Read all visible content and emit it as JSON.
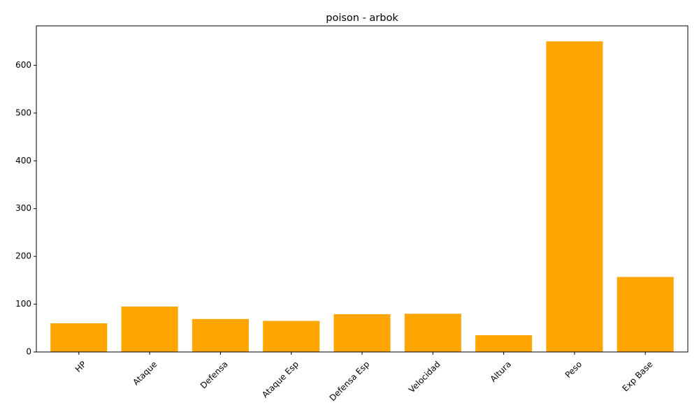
{
  "chart_data": {
    "type": "bar",
    "title": "poison - arbok",
    "xlabel": "",
    "ylabel": "",
    "categories": [
      "HP",
      "Ataque",
      "Defensa",
      "Ataque Esp",
      "Defensa Esp",
      "Velocidad",
      "Altura",
      "Peso",
      "Exp Base"
    ],
    "values": [
      60,
      95,
      69,
      65,
      79,
      80,
      35,
      650,
      157
    ],
    "ylim": [
      0,
      682.5
    ],
    "yticks": [
      0,
      100,
      200,
      300,
      400,
      500,
      600
    ],
    "bar_color": "#ffa500",
    "grid": false,
    "x_tick_rotation_deg": 45
  }
}
